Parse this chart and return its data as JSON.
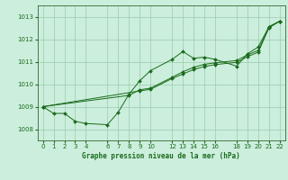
{
  "title": "Graphe pression niveau de la mer (hPa)",
  "bg_color": "#cceedd",
  "grid_color": "#99ccaa",
  "line_color": "#1a6b1a",
  "spine_color": "#336633",
  "xlim": [
    -0.5,
    22.5
  ],
  "ylim": [
    1007.5,
    1013.5
  ],
  "xticks": [
    0,
    1,
    2,
    3,
    4,
    6,
    7,
    8,
    9,
    10,
    12,
    13,
    14,
    15,
    16,
    18,
    19,
    20,
    21,
    22
  ],
  "yticks": [
    1008,
    1009,
    1010,
    1011,
    1012,
    1013
  ],
  "series1": [
    [
      0,
      1009.0
    ],
    [
      1,
      1008.7
    ],
    [
      2,
      1008.7
    ],
    [
      3,
      1008.35
    ],
    [
      4,
      1008.25
    ],
    [
      6,
      1008.2
    ],
    [
      7,
      1008.75
    ],
    [
      8,
      1009.55
    ],
    [
      9,
      1010.15
    ],
    [
      10,
      1010.6
    ],
    [
      12,
      1011.1
    ],
    [
      13,
      1011.45
    ],
    [
      14,
      1011.15
    ],
    [
      15,
      1011.2
    ],
    [
      16,
      1011.1
    ],
    [
      18,
      1010.8
    ],
    [
      19,
      1011.35
    ],
    [
      20,
      1011.65
    ],
    [
      21,
      1012.55
    ],
    [
      22,
      1012.8
    ]
  ],
  "series2": [
    [
      0,
      1009.0
    ],
    [
      8,
      1009.5
    ],
    [
      9,
      1009.75
    ],
    [
      10,
      1009.82
    ],
    [
      12,
      1010.3
    ],
    [
      13,
      1010.55
    ],
    [
      14,
      1010.75
    ],
    [
      15,
      1010.88
    ],
    [
      16,
      1010.95
    ],
    [
      18,
      1011.05
    ],
    [
      19,
      1011.3
    ],
    [
      20,
      1011.5
    ],
    [
      21,
      1012.55
    ],
    [
      22,
      1012.8
    ]
  ],
  "series3": [
    [
      0,
      1009.0
    ],
    [
      9,
      1009.7
    ],
    [
      10,
      1009.77
    ],
    [
      12,
      1010.25
    ],
    [
      13,
      1010.45
    ],
    [
      14,
      1010.65
    ],
    [
      15,
      1010.78
    ],
    [
      16,
      1010.87
    ],
    [
      18,
      1010.97
    ],
    [
      19,
      1011.22
    ],
    [
      20,
      1011.42
    ],
    [
      21,
      1012.5
    ],
    [
      22,
      1012.8
    ]
  ]
}
